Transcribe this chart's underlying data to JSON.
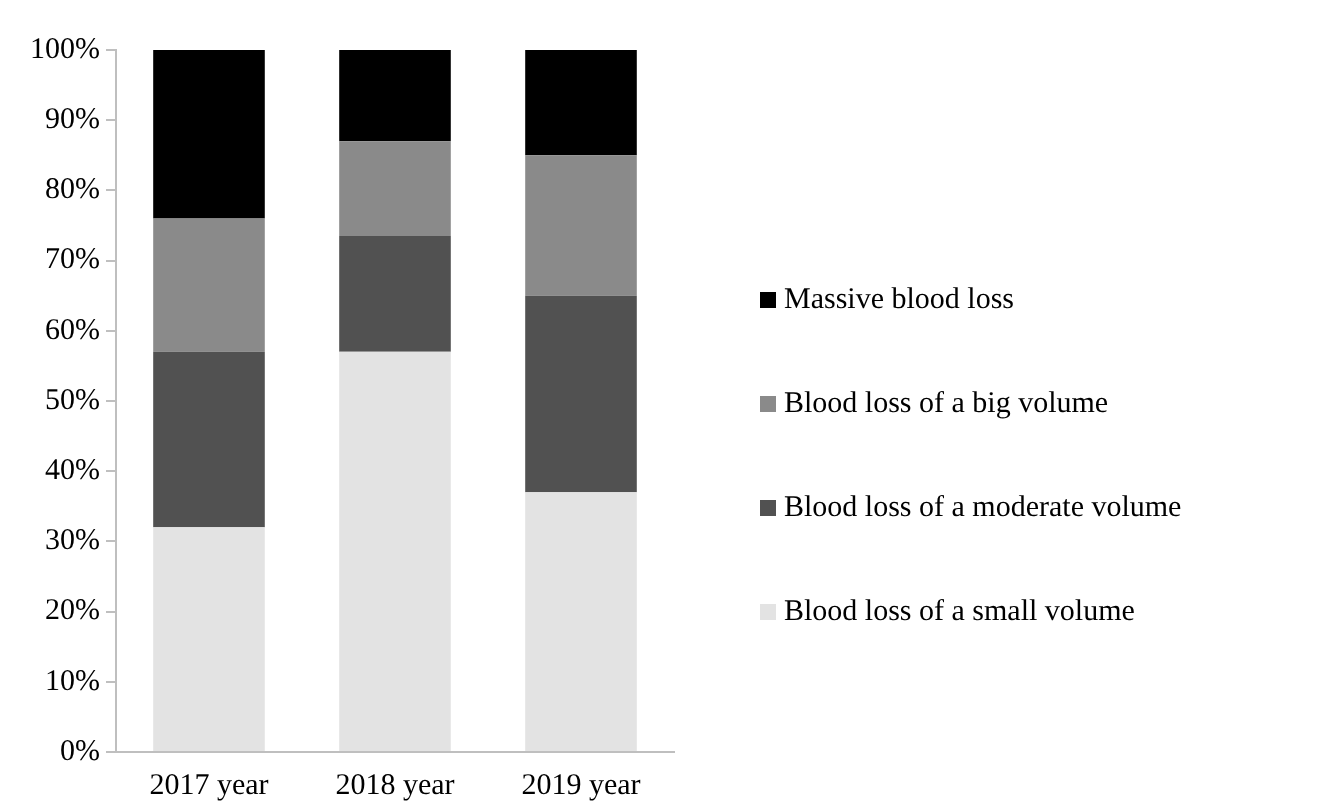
{
  "chart_data": {
    "type": "bar",
    "stacked": true,
    "categories": [
      "2017 year",
      "2018 year",
      "2019 year"
    ],
    "series": [
      {
        "name": "Blood loss of a small volume",
        "color": "#e3e3e3",
        "values": [
          32,
          57,
          37
        ]
      },
      {
        "name": "Blood loss of a moderate volume",
        "color": "#515151",
        "values": [
          25,
          16.5,
          28
        ]
      },
      {
        "name": "Blood loss of a big volume",
        "color": "#8a8a8a",
        "values": [
          19,
          13.5,
          20
        ]
      },
      {
        "name": "Massive blood loss",
        "color": "#000000",
        "values": [
          24,
          13,
          15
        ]
      }
    ],
    "ylim": [
      0,
      100
    ],
    "yticks": [
      {
        "value": 0,
        "label": "0%"
      },
      {
        "value": 10,
        "label": "10%"
      },
      {
        "value": 20,
        "label": "20%"
      },
      {
        "value": 30,
        "label": "30%"
      },
      {
        "value": 40,
        "label": "40%"
      },
      {
        "value": 50,
        "label": "50%"
      },
      {
        "value": 60,
        "label": "60%"
      },
      {
        "value": 70,
        "label": "70%"
      },
      {
        "value": 80,
        "label": "80%"
      },
      {
        "value": 90,
        "label": "90%"
      },
      {
        "value": 100,
        "label": "100%"
      }
    ],
    "grid": false,
    "legend": "right"
  }
}
